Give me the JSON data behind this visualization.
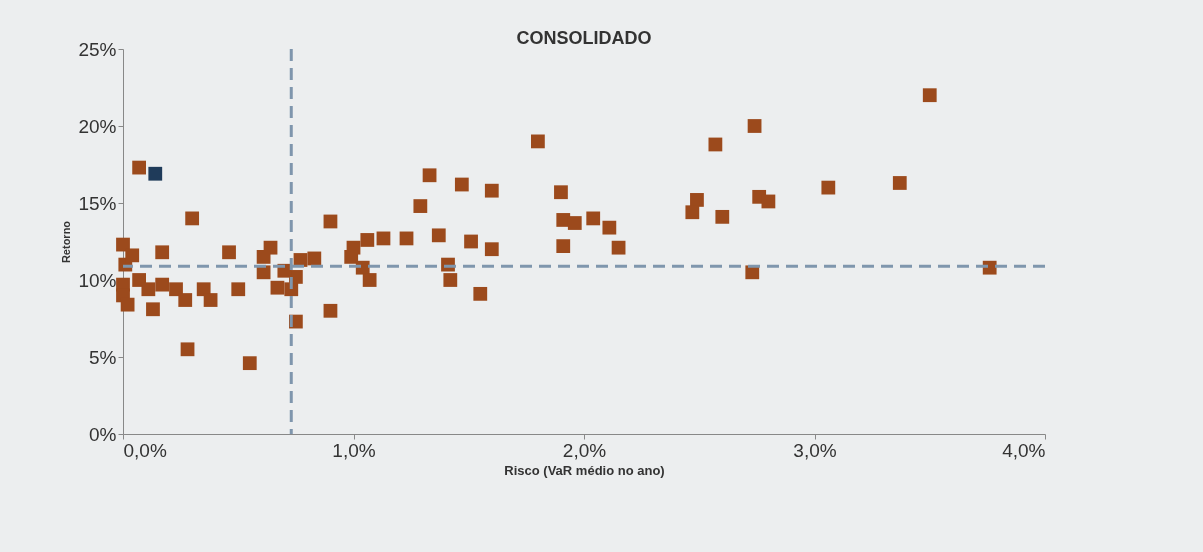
{
  "chart_data": {
    "type": "scatter",
    "title": "CONSOLIDADO",
    "xlabel": "Risco (VaR médio no ano)",
    "ylabel": "Retorno",
    "xlim": [
      0,
      4
    ],
    "xticks": [
      {
        "value": 0,
        "label": "0,0%"
      },
      {
        "value": 1,
        "label": "1,0%"
      },
      {
        "value": 2,
        "label": "2,0%"
      },
      {
        "value": 3,
        "label": "3,0%"
      },
      {
        "value": 4,
        "label": "4,0%"
      }
    ],
    "ylim": [
      0,
      25
    ],
    "yticks": [
      {
        "value": 0,
        "label": "0%"
      },
      {
        "value": 5,
        "label": "5%"
      },
      {
        "value": 10,
        "label": "10%"
      },
      {
        "value": 15,
        "label": "15%"
      },
      {
        "value": 20,
        "label": "20%"
      },
      {
        "value": 25,
        "label": "25%"
      }
    ],
    "grid": false,
    "marker": "square",
    "ref_lines": [
      {
        "axis": "x",
        "value": 0.73,
        "color": "#7f96ad",
        "line_style": "dashed"
      },
      {
        "axis": "y",
        "value": 10.9,
        "color": "#7f96ad",
        "line_style": "dashed"
      }
    ],
    "series": [
      {
        "color": "#9c4a1c",
        "x": [
          0.07,
          0.3,
          0.0,
          0.01,
          0.0,
          0.0,
          0.02,
          0.04,
          0.07,
          0.11,
          0.17,
          0.13,
          0.17,
          0.23,
          0.27,
          0.35,
          0.38,
          0.46,
          0.5,
          0.28,
          0.55,
          0.64,
          0.61,
          0.61,
          0.67,
          0.73,
          0.77,
          0.83,
          0.75,
          0.7,
          0.75,
          0.9,
          0.9,
          1.0,
          0.99,
          1.04,
          1.07,
          1.06,
          1.13,
          1.23,
          1.33,
          1.29,
          1.47,
          1.6,
          1.37,
          1.51,
          1.6,
          1.41,
          1.42,
          1.55,
          1.8,
          1.9,
          1.91,
          2.04,
          2.11,
          1.96,
          1.91,
          2.15,
          3.5,
          2.74,
          2.57,
          2.49,
          2.47,
          2.6,
          2.76,
          2.8,
          3.06,
          3.37,
          2.73,
          3.76
        ],
        "values": [
          17.3,
          14.0,
          12.3,
          11.0,
          9.7,
          9.0,
          8.4,
          11.6,
          10.0,
          9.4,
          9.7,
          8.1,
          11.8,
          9.4,
          8.7,
          9.4,
          8.7,
          11.8,
          9.4,
          5.5,
          4.6,
          12.1,
          11.5,
          10.5,
          9.5,
          9.4,
          11.3,
          11.4,
          10.2,
          10.6,
          7.3,
          8.0,
          13.8,
          12.1,
          11.5,
          10.8,
          10.0,
          12.6,
          12.7,
          12.7,
          16.8,
          14.8,
          16.2,
          15.8,
          12.9,
          12.5,
          12.0,
          11.0,
          10.0,
          9.1,
          19.0,
          15.7,
          13.9,
          14.0,
          13.4,
          13.7,
          12.2,
          12.1,
          22.0,
          20.0,
          18.8,
          15.2,
          14.4,
          14.1,
          15.4,
          15.1,
          16.0,
          16.3,
          10.5,
          10.8
        ]
      },
      {
        "color": "#1f3b5a",
        "x": [
          0.14
        ],
        "values": [
          16.9
        ]
      }
    ]
  }
}
